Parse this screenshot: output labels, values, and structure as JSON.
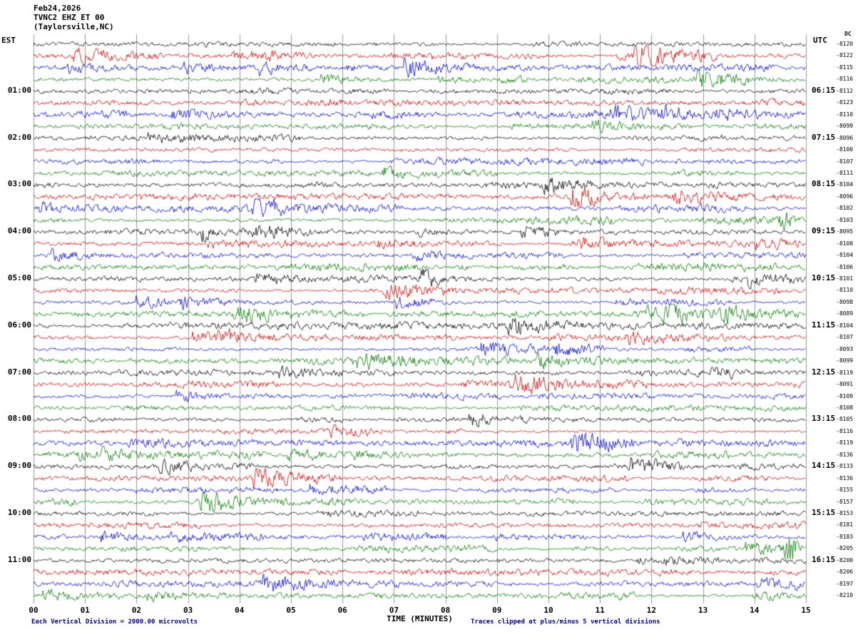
{
  "header": {
    "date": "Feb24,2026",
    "station": "TVNC2 EHZ ET 00",
    "location": "(Taylorsville,NC)"
  },
  "axes": {
    "left_label": "EST",
    "right_label": "UTC",
    "right_sublabel": "DC",
    "x_label": "TIME (MINUTES)",
    "x_ticks": [
      "00",
      "01",
      "02",
      "03",
      "04",
      "05",
      "06",
      "07",
      "08",
      "09",
      "10",
      "11",
      "12",
      "13",
      "14",
      "15"
    ]
  },
  "footer": {
    "left_note": "Each Vertical Division = 2000.00 microvolts",
    "right_note": "Traces clipped at plus/minus 5 vertical divisions"
  },
  "chart_data": {
    "type": "line",
    "subtype": "seismogram-helicorder",
    "title": "TVNC2 EHZ ET 00 (Taylorsville,NC) Feb24,2026",
    "x_range_minutes": [
      0,
      15
    ],
    "minutes_per_line": 15,
    "traces_per_hour": 4,
    "rows_total": 48,
    "trace_colors": [
      "#000000",
      "#cc0000",
      "#0000cc",
      "#007700"
    ],
    "grid_color": "#999999",
    "background": "#ffffff",
    "hour_groups": [
      {
        "est": "",
        "utc": ""
      },
      {
        "est": "01:00",
        "utc": "06:15"
      },
      {
        "est": "02:00",
        "utc": "07:15"
      },
      {
        "est": "03:00",
        "utc": "08:15"
      },
      {
        "est": "04:00",
        "utc": "09:15"
      },
      {
        "est": "05:00",
        "utc": "10:15"
      },
      {
        "est": "06:00",
        "utc": "11:15"
      },
      {
        "est": "07:00",
        "utc": "12:15"
      },
      {
        "est": "08:00",
        "utc": "13:15"
      },
      {
        "est": "09:00",
        "utc": "14:15"
      },
      {
        "est": "10:00",
        "utc": "15:15"
      },
      {
        "est": "11:00",
        "utc": "16:15"
      }
    ],
    "dc_offsets": [
      -8120,
      -8122,
      -8115,
      -8116,
      -8112,
      -8123,
      -8110,
      -8099,
      -8096,
      -8100,
      -8107,
      -8111,
      -8104,
      -8096,
      -8102,
      -8103,
      -8095,
      -8108,
      -8104,
      -8106,
      -8101,
      -8110,
      -8098,
      -8089,
      -8104,
      -8107,
      -8093,
      -8099,
      -8119,
      -8091,
      -8109,
      -8108,
      -8105,
      -8116,
      -8119,
      -8136,
      -8133,
      -8136,
      -8155,
      -8157,
      -8153,
      -8181,
      -8183,
      -8205,
      -8200,
      -8206,
      -8197,
      -8210
    ],
    "event": {
      "row": 43,
      "minute": 14.7,
      "color": "#007700",
      "description": "amplitude burst on green trace near end of 10:45 line"
    },
    "noise_seed": 20260224
  }
}
